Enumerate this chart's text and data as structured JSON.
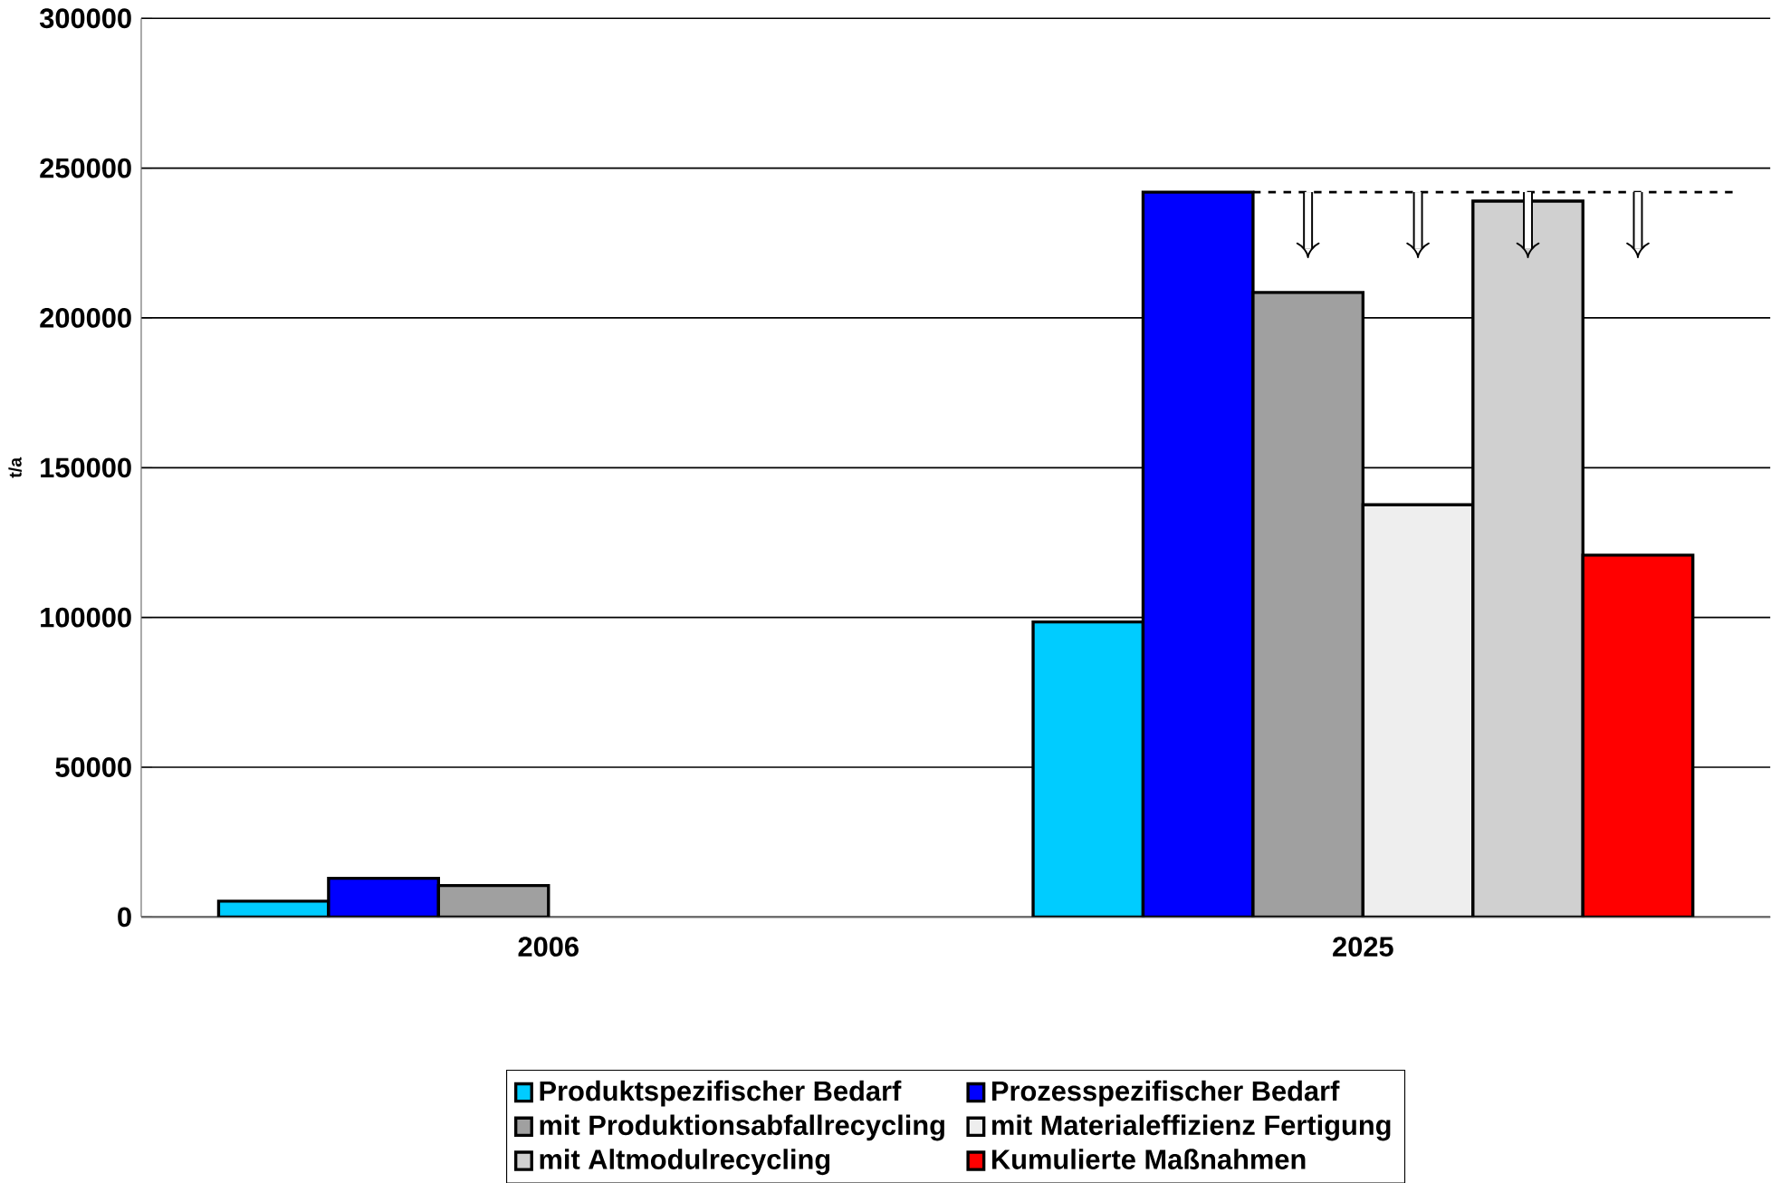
{
  "chart_data": {
    "type": "bar",
    "ylabel": "t/a",
    "categories": [
      "2006",
      "2025"
    ],
    "series": [
      {
        "name": "Produktspezifischer Bedarf",
        "color": "#00ccff",
        "values": [
          5300,
          98500
        ]
      },
      {
        "name": "Prozesspezifischer Bedarf",
        "color": "#0000ff",
        "values": [
          12900,
          242000
        ]
      },
      {
        "name": "mit Produktionsabfallrecycling",
        "color": "#a0a0a0",
        "values": [
          10500,
          208500
        ]
      },
      {
        "name": "mit Materialeffizienz Fertigung",
        "color": "#eeeeee",
        "values": [
          null,
          137600
        ]
      },
      {
        "name": "mit Altmodulrecycling",
        "color": "#d0d0d0",
        "values": [
          null,
          239000
        ]
      },
      {
        "name": "Kumulierte Maßnahmen",
        "color": "#ff0000",
        "values": [
          null,
          120800
        ]
      }
    ],
    "ylim": [
      0,
      300000
    ],
    "yticks": [
      0,
      50000,
      100000,
      150000,
      200000,
      250000,
      300000
    ],
    "grid": "y",
    "legend": "bottom",
    "ref_lines": [
      {
        "axis": "y",
        "value": 242000,
        "line_style": "dashed"
      }
    ]
  }
}
